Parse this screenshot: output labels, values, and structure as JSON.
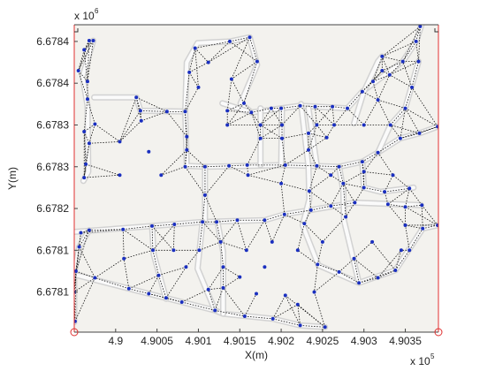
{
  "figure": {
    "y_multiplier_base": "x 10",
    "y_multiplier_exp": "6",
    "x_multiplier_base": "x 10",
    "x_multiplier_exp": "5"
  },
  "colors": {
    "background": "#f3f2ee",
    "road": "#d2d2d2",
    "road_inner": "#fafafa",
    "node": "#1a2fbf",
    "edge": "#111111",
    "frame": "#e03030"
  },
  "chart_data": {
    "type": "scatter",
    "title": "",
    "xlabel": "X(m)",
    "ylabel": "Y(m)",
    "xlim": [
      489950,
      490390
    ],
    "ylim": [
      6678052,
      6678420
    ],
    "grid": false,
    "legend": "none",
    "x_ticks": [
      {
        "value": 490000,
        "label": "4.9"
      },
      {
        "value": 490050,
        "label": "4.9005"
      },
      {
        "value": 490100,
        "label": "4.901"
      },
      {
        "value": 490150,
        "label": "4.9015"
      },
      {
        "value": 490200,
        "label": "4.902"
      },
      {
        "value": 490250,
        "label": "4.9025"
      },
      {
        "value": 490300,
        "label": "4.903"
      },
      {
        "value": 490350,
        "label": "4.9035"
      }
    ],
    "y_ticks": [
      {
        "value": 6678400,
        "label": "6.6784"
      },
      {
        "value": 6678350,
        "label": "6.6784"
      },
      {
        "value": 6678300,
        "label": "6.6783"
      },
      {
        "value": 6678250,
        "label": "6.6783"
      },
      {
        "value": 6678200,
        "label": "6.6782"
      },
      {
        "value": 6678150,
        "label": "6.6781"
      },
      {
        "value": 6678100,
        "label": "6.6781"
      }
    ],
    "roads": [
      [
        [
          489973,
          6678401
        ],
        [
          489960,
          6678358
        ],
        [
          489966,
          6678323
        ],
        [
          489967,
          6678244
        ],
        [
          489961,
          6678233
        ]
      ],
      [
        [
          489974,
          6678333
        ],
        [
          490025,
          6678333
        ],
        [
          490030,
          6678317
        ],
        [
          490084,
          6678316
        ],
        [
          490086,
          6678375
        ],
        [
          490099,
          6678398
        ],
        [
          490138,
          6678400
        ],
        [
          490162,
          6678405
        ],
        [
          490171,
          6678372
        ],
        [
          490151,
          6678326
        ],
        [
          490164,
          6678315
        ]
      ],
      [
        [
          489950,
          6678172
        ],
        [
          490044,
          6678179
        ],
        [
          490105,
          6678184
        ],
        [
          490180,
          6678186
        ],
        [
          490204,
          6678193
        ],
        [
          490289,
          6678207
        ],
        [
          490369,
          6678204
        ]
      ],
      [
        [
          490084,
          6678316
        ],
        [
          490086,
          6678251
        ],
        [
          490108,
          6678250
        ],
        [
          490205,
          6678252
        ],
        [
          490270,
          6678250
        ],
        [
          490298,
          6678256
        ],
        [
          490317,
          6678267
        ],
        [
          490344,
          6678284
        ],
        [
          490367,
          6678290
        ],
        [
          490389,
          6678298
        ]
      ],
      [
        [
          490129,
          6678326
        ],
        [
          490164,
          6678315
        ],
        [
          490200,
          6678320
        ],
        [
          490223,
          6678323
        ],
        [
          490280,
          6678320
        ],
        [
          490298,
          6678340
        ],
        [
          490347,
          6678376
        ],
        [
          490363,
          6678400
        ],
        [
          490372,
          6678427
        ]
      ],
      [
        [
          490224,
          6678325
        ],
        [
          490233,
          6678250
        ],
        [
          490234,
          6678211
        ],
        [
          490226,
          6678180
        ],
        [
          490245,
          6678132
        ],
        [
          490294,
          6678111
        ]
      ],
      [
        [
          489968,
          6678174
        ],
        [
          489956,
          6678154
        ],
        [
          489950,
          6678123
        ],
        [
          489950,
          6678064
        ]
      ],
      [
        [
          489950,
          6678121
        ],
        [
          490040,
          6678098
        ],
        [
          490120,
          6678078
        ],
        [
          490130,
          6678074
        ],
        [
          490190,
          6678068
        ],
        [
          490223,
          6678060
        ],
        [
          490253,
          6678058
        ]
      ],
      [
        [
          490044,
          6678179
        ],
        [
          490046,
          6678145
        ],
        [
          490061,
          6678092
        ]
      ],
      [
        [
          490108,
          6678250
        ],
        [
          490108,
          6678184
        ]
      ],
      [
        [
          490105,
          6678184
        ],
        [
          490099,
          6678128
        ],
        [
          490120,
          6678078
        ]
      ],
      [
        [
          490130,
          6678074
        ],
        [
          490130,
          6678148
        ],
        [
          490123,
          6678184
        ]
      ],
      [
        [
          490175,
          6678252
        ],
        [
          490175,
          6678320
        ]
      ],
      [
        [
          490270,
          6678250
        ],
        [
          490275,
          6678222
        ],
        [
          490276,
          6678185
        ],
        [
          490294,
          6678111
        ],
        [
          490338,
          6678126
        ],
        [
          490371,
          6678176
        ],
        [
          490389,
          6678180
        ]
      ],
      [
        [
          490298,
          6678256
        ],
        [
          490300,
          6678225
        ],
        [
          490320,
          6678220
        ],
        [
          490360,
          6678225
        ]
      ],
      [
        [
          490317,
          6678267
        ],
        [
          490332,
          6678300
        ],
        [
          490350,
          6678320
        ],
        [
          490366,
          6678376
        ]
      ],
      [
        [
          490200,
          6678252
        ],
        [
          490201,
          6678320
        ]
      ],
      [
        [
          490243,
          6678252
        ],
        [
          490233,
          6678320
        ]
      ],
      [
        [
          490288,
          6678302
        ],
        [
          490300,
          6678340
        ],
        [
          490317,
          6678376
        ],
        [
          490322,
          6678382
        ]
      ]
    ],
    "nodes": [
      [
        489968,
        6678401
      ],
      [
        489962,
        6678390
      ],
      [
        489955,
        6678365
      ],
      [
        489966,
        6678352
      ],
      [
        489966,
        6678331
      ],
      [
        489975,
        6678301
      ],
      [
        489962,
        6678292
      ],
      [
        489968,
        6678278
      ],
      [
        489964,
        6678253
      ],
      [
        489962,
        6678237
      ],
      [
        489973,
        6678401
      ],
      [
        490025,
        6678333
      ],
      [
        490030,
        6678317
      ],
      [
        490031,
        6678305
      ],
      [
        490062,
        6678316
      ],
      [
        490084,
        6678316
      ],
      [
        490089,
        6678363
      ],
      [
        490096,
        6678392
      ],
      [
        490138,
        6678400
      ],
      [
        490162,
        6678405
      ],
      [
        490171,
        6678376
      ],
      [
        490155,
        6678326
      ],
      [
        490164,
        6678315
      ],
      [
        490188,
        6678320
      ],
      [
        490200,
        6678320
      ],
      [
        490223,
        6678323
      ],
      [
        490241,
        6678322
      ],
      [
        490262,
        6678322
      ],
      [
        490280,
        6678320
      ],
      [
        490298,
        6678340
      ],
      [
        490311,
        6678352
      ],
      [
        490331,
        6678360
      ],
      [
        490347,
        6678376
      ],
      [
        490363,
        6678400
      ],
      [
        490368,
        6678418
      ],
      [
        489958,
        6678171
      ],
      [
        490009,
        6678175
      ],
      [
        490044,
        6678179
      ],
      [
        490071,
        6678181
      ],
      [
        490105,
        6678184
      ],
      [
        490122,
        6678184
      ],
      [
        490147,
        6678186
      ],
      [
        490180,
        6678186
      ],
      [
        490204,
        6678193
      ],
      [
        490236,
        6678198
      ],
      [
        490260,
        6678203
      ],
      [
        490289,
        6678207
      ],
      [
        490329,
        6678205
      ],
      [
        490350,
        6678202
      ],
      [
        490370,
        6678204
      ],
      [
        490084,
        6678250
      ],
      [
        490108,
        6678250
      ],
      [
        490137,
        6678251
      ],
      [
        490159,
        6678252
      ],
      [
        490205,
        6678252
      ],
      [
        490243,
        6678251
      ],
      [
        490270,
        6678250
      ],
      [
        490298,
        6678256
      ],
      [
        490317,
        6678267
      ],
      [
        490344,
        6678284
      ],
      [
        490367,
        6678290
      ],
      [
        490389,
        6678298
      ],
      [
        490086,
        6678286
      ],
      [
        490086,
        6678270
      ],
      [
        490135,
        6678317
      ],
      [
        490135,
        6678300
      ],
      [
        490175,
        6678284
      ],
      [
        490175,
        6678300
      ],
      [
        490201,
        6678284
      ],
      [
        490233,
        6678290
      ],
      [
        490233,
        6678270
      ],
      [
        490234,
        6678221
      ],
      [
        490228,
        6678182
      ],
      [
        490244,
        6678133
      ],
      [
        490270,
        6678124
      ],
      [
        490294,
        6678111
      ],
      [
        489968,
        6678174
      ],
      [
        489956,
        6678154
      ],
      [
        489952,
        6678125
      ],
      [
        489950,
        6678100
      ],
      [
        489951,
        6678065
      ],
      [
        489975,
        6678117
      ],
      [
        490016,
        6678104
      ],
      [
        490040,
        6678098
      ],
      [
        490080,
        6678088
      ],
      [
        490120,
        6678078
      ],
      [
        490156,
        6678071
      ],
      [
        490190,
        6678068
      ],
      [
        490223,
        6678060
      ],
      [
        490253,
        6678058
      ],
      [
        490045,
        6678150
      ],
      [
        490052,
        6678120
      ],
      [
        490061,
        6678093
      ],
      [
        490108,
        6678216
      ],
      [
        490101,
        6678150
      ],
      [
        490112,
        6678103
      ],
      [
        490130,
        6678105
      ],
      [
        490130,
        6678130
      ],
      [
        490127,
        6678160
      ],
      [
        490275,
        6678230
      ],
      [
        490278,
        6678190
      ],
      [
        490288,
        6678140
      ],
      [
        490317,
        6678117
      ],
      [
        490338,
        6678126
      ],
      [
        490355,
        6678150
      ],
      [
        490371,
        6678176
      ],
      [
        490389,
        6678180
      ],
      [
        490300,
        6678225
      ],
      [
        490325,
        6678220
      ],
      [
        490355,
        6678224
      ],
      [
        490332,
        6678300
      ],
      [
        490350,
        6678320
      ],
      [
        490358,
        6678345
      ],
      [
        490366,
        6678376
      ],
      [
        490201,
        6678300
      ],
      [
        490243,
        6678300
      ],
      [
        490300,
        6678300
      ],
      [
        490317,
        6678330
      ],
      [
        490322,
        6678365
      ],
      [
        490322,
        6678382
      ],
      [
        490264,
        6678300
      ],
      [
        490255,
        6678285
      ],
      [
        490160,
        6678240
      ],
      [
        490200,
        6678230
      ],
      [
        490260,
        6678240
      ],
      [
        490300,
        6678244
      ],
      [
        490335,
        6678240
      ],
      [
        490150,
        6678118
      ],
      [
        490170,
        6678098
      ],
      [
        490205,
        6678096
      ],
      [
        490220,
        6678085
      ],
      [
        490240,
        6678100
      ],
      [
        490158,
        6678150
      ],
      [
        490189,
        6678160
      ],
      [
        490220,
        6678150
      ],
      [
        490100,
        6678345
      ],
      [
        490112,
        6678375
      ],
      [
        490140,
        6678355
      ],
      [
        490005,
        6678280
      ],
      [
        490005,
        6678240
      ],
      [
        490040,
        6678268
      ],
      [
        490055,
        6678240
      ],
      [
        490010,
        6678140
      ],
      [
        490085,
        6678130
      ],
      [
        490070,
        6678150
      ],
      [
        490180,
        6678130
      ],
      [
        490250,
        6678160
      ],
      [
        490310,
        6678160
      ],
      [
        490345,
        6678150
      ],
      [
        490350,
        6678180
      ]
    ],
    "edge_count": 320
  }
}
